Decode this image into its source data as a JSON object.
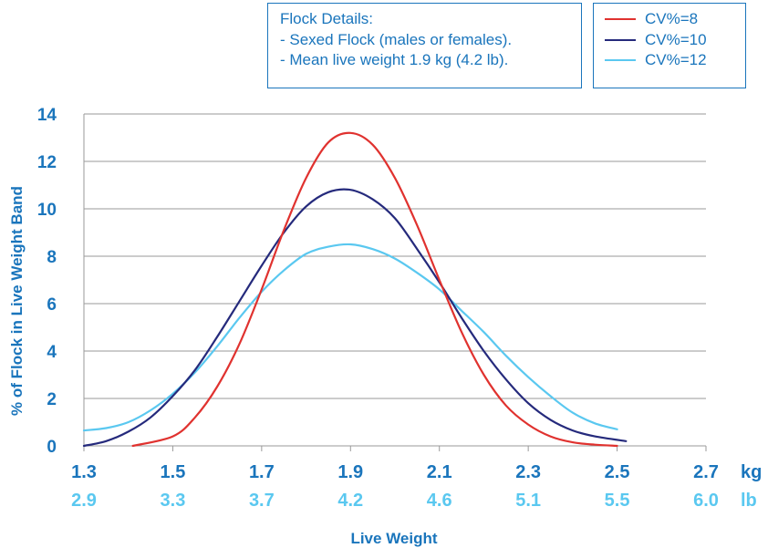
{
  "details": {
    "heading": "Flock Details:",
    "lines": [
      "- Sexed Flock (males or females).",
      "- Mean live weight 1.9 kg (4.2 lb)."
    ]
  },
  "colors": {
    "text_blue": "#1a75bc",
    "light_blue": "#5ac8f0",
    "grid": "#9a9a9a"
  },
  "chart_data": {
    "type": "line",
    "xlabel": "Live Weight",
    "ylabel": "% of Flock in Live Weight Band",
    "x_unit": "kg",
    "x2_unit": "lb",
    "xlim": [
      1.3,
      2.7
    ],
    "ylim": [
      0,
      14
    ],
    "yticks": [
      "0",
      "2",
      "4",
      "6",
      "8",
      "10",
      "12",
      "14"
    ],
    "xticks_kg": [
      "1.3",
      "1.5",
      "1.7",
      "1.9",
      "2.1",
      "2.3",
      "2.5",
      "2.7"
    ],
    "xticks_lb": [
      "2.9",
      "3.3",
      "3.7",
      "4.2",
      "4.6",
      "5.1",
      "5.5",
      "6.0"
    ],
    "grid": true,
    "legend_position": "top-right",
    "series": [
      {
        "name": "CV%=8",
        "color": "#e0322f",
        "x": [
          1.41,
          1.5,
          1.55,
          1.6,
          1.65,
          1.7,
          1.75,
          1.8,
          1.85,
          1.9,
          1.95,
          2.0,
          2.05,
          2.1,
          2.15,
          2.2,
          2.25,
          2.3,
          2.35,
          2.4,
          2.45,
          2.5
        ],
        "y": [
          0.0,
          0.4,
          1.2,
          2.5,
          4.3,
          6.6,
          9.1,
          11.3,
          12.8,
          13.2,
          12.7,
          11.3,
          9.3,
          7.0,
          4.8,
          3.0,
          1.7,
          0.9,
          0.4,
          0.15,
          0.05,
          0.0
        ]
      },
      {
        "name": "CV%=10",
        "color": "#252a7c",
        "x": [
          1.3,
          1.35,
          1.4,
          1.45,
          1.5,
          1.55,
          1.6,
          1.65,
          1.7,
          1.75,
          1.8,
          1.85,
          1.9,
          1.95,
          2.0,
          2.05,
          2.1,
          2.15,
          2.2,
          2.25,
          2.3,
          2.35,
          2.4,
          2.45,
          2.52
        ],
        "y": [
          0.0,
          0.2,
          0.6,
          1.2,
          2.1,
          3.2,
          4.6,
          6.1,
          7.6,
          9.0,
          10.1,
          10.7,
          10.8,
          10.4,
          9.6,
          8.3,
          6.9,
          5.4,
          4.0,
          2.8,
          1.8,
          1.1,
          0.65,
          0.4,
          0.2
        ]
      },
      {
        "name": "CV%=12",
        "color": "#5ac8f0",
        "x": [
          1.3,
          1.35,
          1.4,
          1.45,
          1.5,
          1.55,
          1.6,
          1.65,
          1.7,
          1.75,
          1.8,
          1.85,
          1.9,
          1.95,
          2.0,
          2.05,
          2.1,
          2.15,
          2.2,
          2.25,
          2.3,
          2.35,
          2.4,
          2.45,
          2.5
        ],
        "y": [
          0.65,
          0.75,
          1.0,
          1.5,
          2.2,
          3.1,
          4.2,
          5.4,
          6.5,
          7.4,
          8.1,
          8.4,
          8.5,
          8.3,
          7.9,
          7.3,
          6.6,
          5.7,
          4.8,
          3.8,
          2.9,
          2.1,
          1.4,
          0.95,
          0.7
        ]
      }
    ]
  }
}
